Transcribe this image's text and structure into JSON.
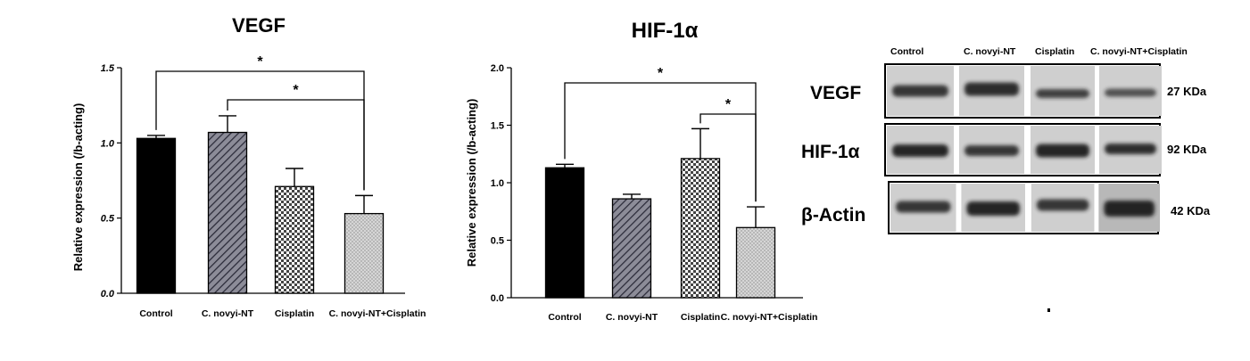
{
  "chart_data": [
    {
      "type": "bar",
      "title": "VEGF",
      "ylabel": "Relative expression (/b-acting)",
      "xlabel": "",
      "categories": [
        "Control",
        "C. novyi-NT",
        "Cisplatin",
        "C. novyi-NT+Cisplatin"
      ],
      "values": [
        1.03,
        1.07,
        0.71,
        0.53
      ],
      "errors": [
        0.02,
        0.11,
        0.12,
        0.12
      ],
      "ylim": [
        0,
        1.5
      ],
      "yticks": [
        "0.0",
        "0.5",
        "1.0",
        "1.5"
      ],
      "tick_values": [
        0,
        0.5,
        1.0,
        1.5
      ],
      "fills": [
        "solid-black",
        "diagonal-hatch",
        "checker",
        "dots"
      ],
      "significance": [
        {
          "from": 0,
          "to": 3,
          "label": "*"
        },
        {
          "from": 1,
          "to": 3,
          "label": "*"
        }
      ]
    },
    {
      "type": "bar",
      "title": "HIF-1α",
      "ylabel": "Relative expression (/b-acting)",
      "xlabel": "",
      "categories": [
        "Control",
        "C. novyi-NT",
        "Cisplatin",
        "C. novyi-NT+Cisplatin"
      ],
      "values": [
        1.13,
        0.86,
        1.21,
        0.61
      ],
      "errors": [
        0.03,
        0.04,
        0.26,
        0.18
      ],
      "ylim": [
        0,
        2.0
      ],
      "yticks": [
        "0.0",
        "0.5",
        "1.0",
        "1.5",
        "2.0"
      ],
      "tick_values": [
        0,
        0.5,
        1.0,
        1.5,
        2.0
      ],
      "fills": [
        "solid-black",
        "diagonal-hatch",
        "checker",
        "dots"
      ],
      "significance": [
        {
          "from": 0,
          "to": 3,
          "label": "*"
        },
        {
          "from": 2,
          "to": 3,
          "label": "*"
        }
      ]
    }
  ],
  "western_blot": {
    "lanes": [
      "Control",
      "C. novyi-NT",
      "Cisplatin",
      "C. novyi-NT+Cisplatin"
    ],
    "rows": [
      {
        "protein": "VEGF",
        "size": "27 KDa"
      },
      {
        "protein": "HIF-1α",
        "size": "92 KDa"
      },
      {
        "protein": "β-Actin",
        "size": "42 KDa"
      }
    ]
  }
}
